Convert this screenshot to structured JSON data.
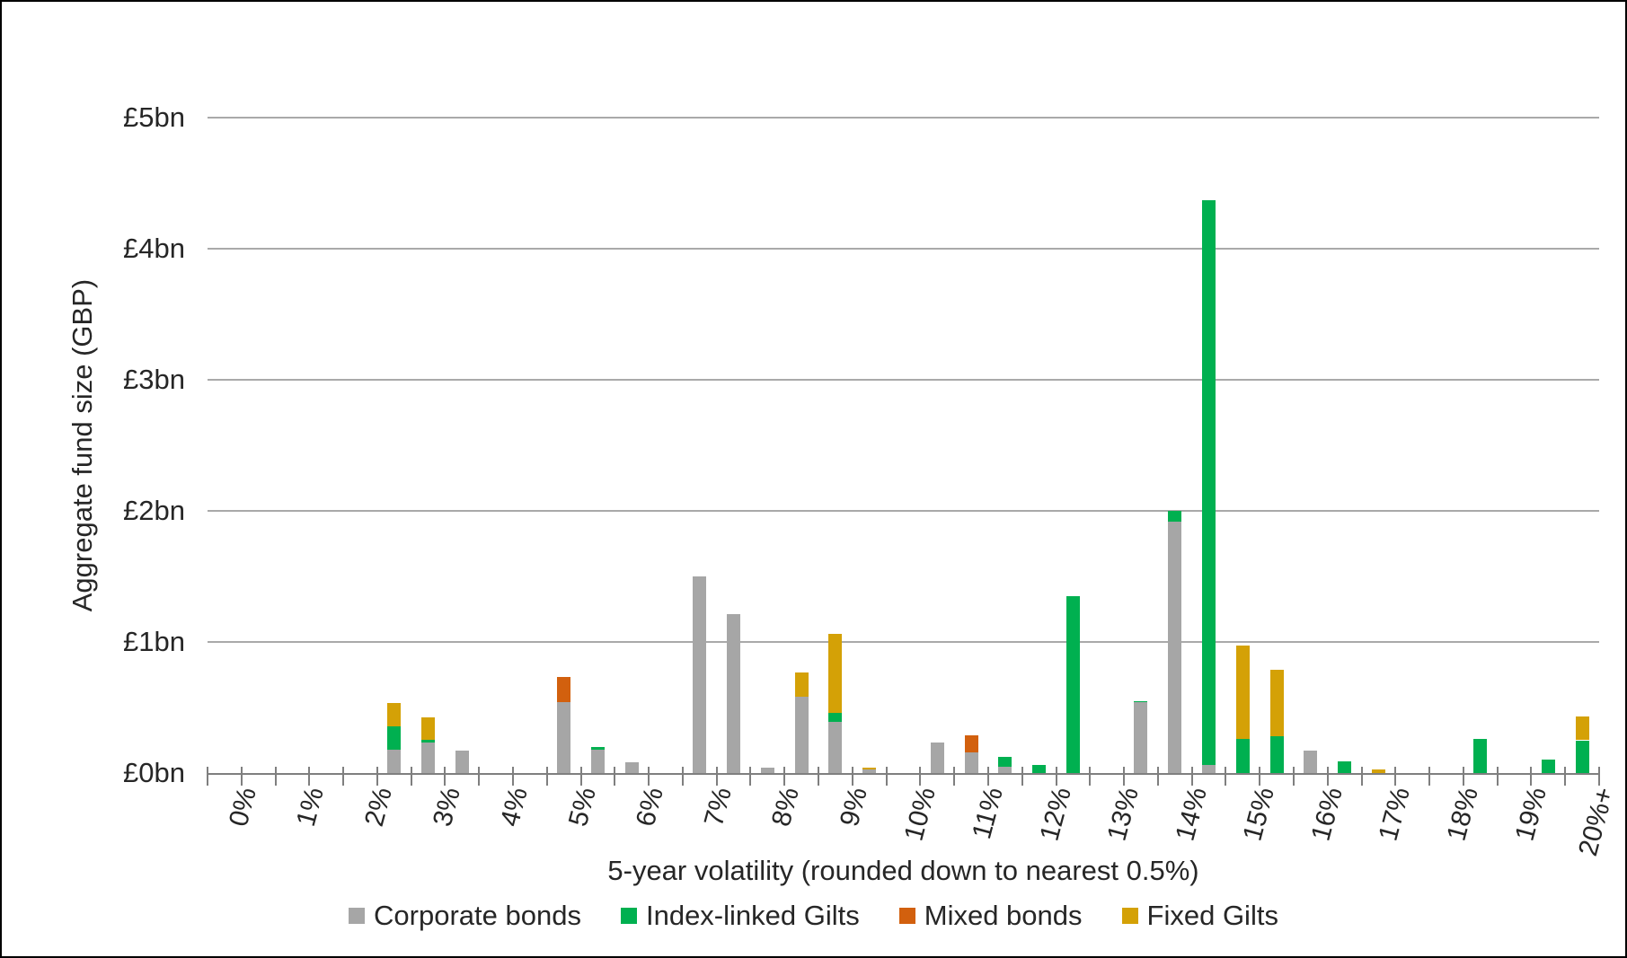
{
  "figure": {
    "background": "#ffffff",
    "border_color": "#000000",
    "gridline_color": "#a9a9a9",
    "axis_color": "#7f7f7f",
    "text_color": "#262626"
  },
  "chart_data": {
    "type": "bar",
    "subtype": "stacked-vertical",
    "title": "",
    "xlabel": "5-year volatility (rounded down to nearest 0.5%)",
    "ylabel": "Aggregate fund size (GBP)",
    "ylim": [
      0,
      5
    ],
    "grid": "horizontal",
    "legend_position": "bottom-center",
    "y_tick_labels": [
      "£0bn",
      "£1bn",
      "£2bn",
      "£3bn",
      "£4bn",
      "£5bn"
    ],
    "x_tick_labels": [
      "0%",
      "1%",
      "2%",
      "3%",
      "4%",
      "5%",
      "6%",
      "7%",
      "8%",
      "9%",
      "10%",
      "11%",
      "12%",
      "13%",
      "14%",
      "15%",
      "16%",
      "17%",
      "18%",
      "19%",
      "20%+"
    ],
    "categories": [
      "0",
      "0.5",
      "1",
      "1.5",
      "2",
      "2.5",
      "3",
      "3.5",
      "4",
      "4.5",
      "5",
      "5.5",
      "6",
      "6.5",
      "7",
      "7.5",
      "8",
      "8.5",
      "9",
      "9.5",
      "10",
      "10.5",
      "11",
      "11.5",
      "12",
      "12.5",
      "13",
      "13.5",
      "14",
      "14.5",
      "15",
      "15.5",
      "16",
      "16.5",
      "17",
      "17.5",
      "18",
      "18.5",
      "19",
      "19.5",
      "20+"
    ],
    "units": "GBP bn",
    "series": [
      {
        "name": "Corporate bonds",
        "color": "#a6a6a6",
        "values": [
          0,
          0,
          0,
          0,
          0,
          0.175,
          0.235,
          0.17,
          0,
          0,
          0.54,
          0.18,
          0.08,
          0,
          1.5,
          1.21,
          0.04,
          0.58,
          0.39,
          0.025,
          0,
          0.23,
          0.16,
          0.05,
          0,
          0,
          0,
          0.54,
          1.92,
          0.06,
          0,
          0,
          0.17,
          0,
          0,
          0,
          0,
          0,
          0,
          0,
          0
        ]
      },
      {
        "name": "Index-linked Gilts",
        "color": "#00b050",
        "values": [
          0,
          0,
          0,
          0,
          0,
          0.18,
          0.02,
          0,
          0,
          0,
          0,
          0.02,
          0,
          0,
          0,
          0,
          0,
          0,
          0.07,
          0,
          0,
          0,
          0,
          0.07,
          0.06,
          1.35,
          0,
          0.01,
          0.08,
          4.31,
          0.26,
          0.28,
          0,
          0.09,
          0,
          0,
          0,
          0.26,
          0,
          0.1,
          0.25
        ]
      },
      {
        "name": "Mixed bonds",
        "color": "#d2600e",
        "values": [
          0,
          0,
          0,
          0,
          0,
          0,
          0,
          0,
          0,
          0,
          0.19,
          0,
          0,
          0,
          0,
          0,
          0,
          0,
          0,
          0,
          0,
          0,
          0.13,
          0,
          0,
          0,
          0,
          0,
          0,
          0,
          0,
          0,
          0,
          0,
          0,
          0,
          0,
          0,
          0,
          0,
          0
        ]
      },
      {
        "name": "Fixed Gilts",
        "color": "#d4a106",
        "values": [
          0,
          0,
          0,
          0,
          0,
          0.18,
          0.17,
          0,
          0,
          0,
          0,
          0,
          0,
          0,
          0,
          0,
          0,
          0.19,
          0.6,
          0.015,
          0,
          0,
          0,
          0,
          0,
          0,
          0,
          0,
          0,
          0,
          0.71,
          0.51,
          0,
          0,
          0.03,
          0,
          0,
          0,
          0,
          0,
          0.18
        ]
      }
    ]
  }
}
